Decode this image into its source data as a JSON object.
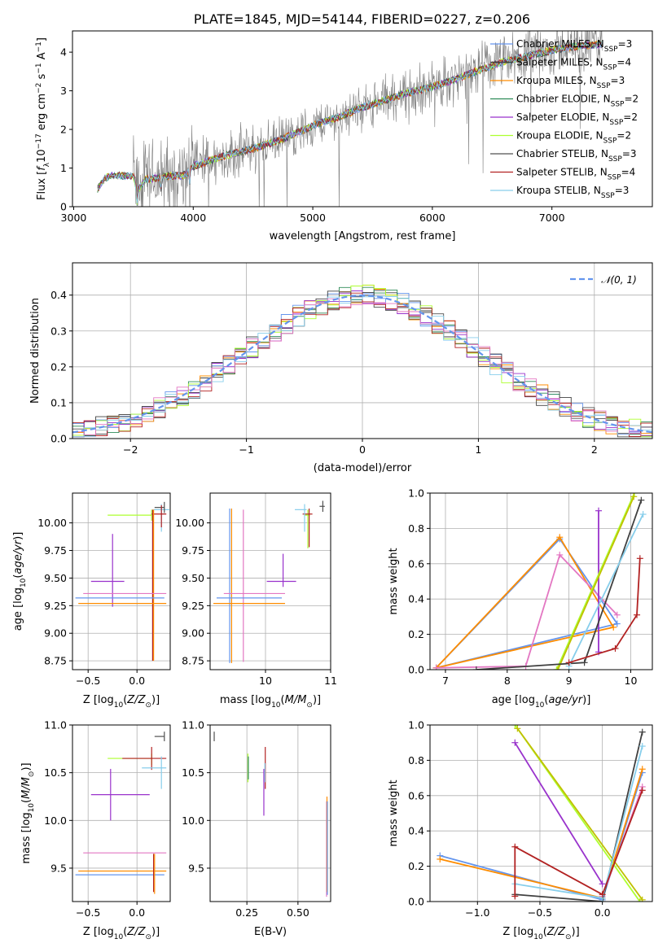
{
  "chart_data": [
    {
      "type": "line",
      "panel": "spectrum",
      "title": "PLATE=1845, MJD=54144, FIBERID=0227, z=0.206",
      "xlabel": "wavelength [Angstrom, rest frame]",
      "ylabel": "Flux [f_λ 10^-17 erg cm^-2 s^-1 A^-1]",
      "xlim": [
        2990,
        7840
      ],
      "ylim": [
        0,
        4.55
      ],
      "xticks": [
        "3000",
        "4000",
        "5000",
        "6000",
        "7000"
      ],
      "yticks": [
        "0",
        "1",
        "2",
        "3",
        "4"
      ],
      "data_color": "#808080",
      "legend_position": "upper right",
      "legend": [
        {
          "label": "Chabrier MILES, N",
          "sub": "SSP",
          "tail": "=3",
          "color": "#6495ed"
        },
        {
          "label": "Salpeter MILES, N",
          "sub": "SSP",
          "tail": "=4",
          "color": "#404040"
        },
        {
          "label": "Kroupa MILES, N",
          "sub": "SSP",
          "tail": "=3",
          "color": "#ff8c00"
        },
        {
          "label": "Chabrier ELODIE, N",
          "sub": "SSP",
          "tail": "=2",
          "color": "#2e8b57"
        },
        {
          "label": "Salpeter ELODIE, N",
          "sub": "SSP",
          "tail": "=2",
          "color": "#9932cc"
        },
        {
          "label": "Kroupa ELODIE, N",
          "sub": "SSP",
          "tail": "=2",
          "color": "#adff2f"
        },
        {
          "label": "Chabrier STELIB, N",
          "sub": "SSP",
          "tail": "=3",
          "color": "#505050"
        },
        {
          "label": "Salpeter STELIB, N",
          "sub": "SSP",
          "tail": "=4",
          "color": "#b22222"
        },
        {
          "label": "Kroupa STELIB, N",
          "sub": "SSP",
          "tail": "=3",
          "color": "#87ceeb"
        }
      ],
      "model_curve": {
        "x": [
          3200,
          3250,
          3300,
          3500,
          3530,
          3600,
          3700,
          3800,
          3900,
          3950,
          4000,
          4100,
          4300,
          4500,
          4700,
          4900,
          5000,
          5200,
          5400,
          5600,
          5800,
          6000,
          6200,
          6400,
          6600,
          6800,
          7000,
          7200,
          7400
        ],
        "y": [
          0.45,
          0.7,
          0.8,
          0.8,
          0.4,
          0.7,
          0.75,
          0.8,
          0.8,
          0.85,
          1.05,
          1.15,
          1.35,
          1.5,
          1.7,
          1.95,
          2.1,
          2.3,
          2.55,
          2.75,
          2.95,
          3.1,
          3.3,
          3.55,
          3.75,
          3.9,
          4.05,
          4.15,
          4.2
        ]
      }
    },
    {
      "type": "line",
      "panel": "residual-histogram",
      "xlabel": "(data-model)/error",
      "ylabel": "Normed distribution",
      "xlim": [
        -2.5,
        2.5
      ],
      "ylim": [
        0,
        0.49
      ],
      "xticks": [
        -2,
        -1,
        0,
        1,
        2
      ],
      "yticks": [
        "0.0",
        "0.1",
        "0.2",
        "0.3",
        "0.4"
      ],
      "grid": true,
      "legend": [
        {
          "label": "𝒩(0, 1)",
          "color": "#6495ed",
          "style": "dashed"
        }
      ],
      "legend_position": "upper right",
      "curve_colors": [
        "#6495ed",
        "#404040",
        "#ff8c00",
        "#2e8b57",
        "#9932cc",
        "#adff2f",
        "#505050",
        "#b22222",
        "#87ceeb",
        "#e377c2"
      ]
    },
    {
      "type": "scatter",
      "panel": "age-vs-Z",
      "xlabel": "Z [log10(Z/Z⊙)]",
      "ylabel": "age [log10(age/yr)]",
      "xlim": [
        -0.66,
        0.34
      ],
      "ylim": [
        8.67,
        10.27
      ],
      "xticks": [
        "-0.5",
        "0.0"
      ],
      "yticks": [
        "8.75",
        "9.00",
        "9.25",
        "9.50",
        "9.75",
        "10.00"
      ],
      "errorbars": [
        {
          "x": 0.15,
          "y": 10.07,
          "xerr": [
            0.45,
            0.0
          ],
          "yerr": [
            0.05,
            0.05
          ],
          "color": "#adff2f"
        },
        {
          "x": 0.25,
          "y": 10.12,
          "xerr": [
            0.08,
            0.08
          ],
          "yerr": [
            0.2,
            0.05
          ],
          "color": "#87ceeb"
        },
        {
          "x": 0.28,
          "y": 10.14,
          "xerr": [
            0.1,
            0.0
          ],
          "yerr": [
            0.05,
            0.05
          ],
          "color": "#505050"
        },
        {
          "x": 0.25,
          "y": 10.08,
          "xerr": [
            0.1,
            0.05
          ],
          "yerr": [
            0.12,
            0.08
          ],
          "color": "#b22222"
        },
        {
          "x": 0.16,
          "y": 9.3,
          "xerr": [
            0.0,
            0.0
          ],
          "yerr": [
            0.55,
            0.82
          ],
          "color": "#b22222"
        },
        {
          "x": 0.17,
          "y": 9.3,
          "xerr": [
            0.0,
            0.0
          ],
          "yerr": [
            0.55,
            0.82
          ],
          "color": "#ff8c00"
        },
        {
          "x": -0.25,
          "y": 9.47,
          "xerr": [
            0.22,
            0.12
          ],
          "yerr": [
            0.23,
            0.43
          ],
          "color": "#9932cc"
        },
        {
          "x": 0.0,
          "y": 9.36,
          "xerr": [
            0.55,
            0.3
          ],
          "yerr": [
            0.0,
            0.0
          ],
          "color": "#e377c2"
        },
        {
          "x": 0.0,
          "y": 9.32,
          "xerr": [
            0.63,
            0.28
          ],
          "yerr": [
            0.0,
            0.0
          ],
          "color": "#6495ed"
        },
        {
          "x": 0.0,
          "y": 9.27,
          "xerr": [
            0.6,
            0.3
          ],
          "yerr": [
            0.0,
            0.0
          ],
          "color": "#ff8c00"
        }
      ]
    },
    {
      "type": "scatter",
      "panel": "age-vs-mass",
      "xlabel": "mass [log10(M/M⊙)]",
      "xlim": [
        9.15,
        11.0
      ],
      "ylim": [
        8.67,
        10.27
      ],
      "xticks": [
        "10",
        "11"
      ],
      "yticks": [
        "8.75",
        "9.00",
        "9.25",
        "9.50",
        "9.75",
        "10.00"
      ],
      "errorbars": [
        {
          "x": 9.45,
          "y": 9.43,
          "xerr": [
            0.0,
            0.0
          ],
          "yerr": [
            0.7,
            0.7
          ],
          "color": "#6495ed"
        },
        {
          "x": 9.48,
          "y": 9.43,
          "xerr": [
            0.0,
            0.0
          ],
          "yerr": [
            0.7,
            0.7
          ],
          "color": "#ff8c00"
        },
        {
          "x": 9.66,
          "y": 9.43,
          "xerr": [
            0.0,
            0.0
          ],
          "yerr": [
            0.69,
            0.69
          ],
          "color": "#e377c2"
        },
        {
          "x": 9.66,
          "y": 9.36,
          "xerr": [
            0.3,
            0.64
          ],
          "yerr": [
            0.0,
            0.0
          ],
          "color": "#e377c2"
        },
        {
          "x": 9.55,
          "y": 9.32,
          "xerr": [
            0.3,
            0.7
          ],
          "yerr": [
            0.0,
            0.0
          ],
          "color": "#6495ed"
        },
        {
          "x": 9.5,
          "y": 9.27,
          "xerr": [
            0.3,
            0.8
          ],
          "yerr": [
            0.0,
            0.0
          ],
          "color": "#ff8c00"
        },
        {
          "x": 10.27,
          "y": 9.47,
          "xerr": [
            0.25,
            0.2
          ],
          "yerr": [
            0.05,
            0.25
          ],
          "color": "#9932cc"
        },
        {
          "x": 10.65,
          "y": 10.07,
          "xerr": [
            0.05,
            0.03
          ],
          "yerr": [
            0.3,
            0.05
          ],
          "color": "#adff2f"
        },
        {
          "x": 10.67,
          "y": 10.08,
          "xerr": [
            0.1,
            0.05
          ],
          "yerr": [
            0.3,
            0.05
          ],
          "color": "#b22222"
        },
        {
          "x": 10.6,
          "y": 10.12,
          "xerr": [
            0.15,
            0.03
          ],
          "yerr": [
            0.2,
            0.05
          ],
          "color": "#87ceeb"
        },
        {
          "x": 10.88,
          "y": 10.15,
          "xerr": [
            0.05,
            0.03
          ],
          "yerr": [
            0.05,
            0.05
          ],
          "color": "#505050"
        }
      ]
    },
    {
      "type": "line",
      "panel": "mass-weight-vs-age",
      "xlabel": "age [log10(age/yr)]",
      "ylabel": "mass weight",
      "xlim": [
        6.75,
        10.35
      ],
      "ylim": [
        0,
        1.0
      ],
      "xticks": [
        7,
        8,
        9,
        10
      ],
      "yticks": [
        "0.0",
        "0.2",
        "0.4",
        "0.6",
        "0.8",
        "1.0"
      ],
      "grid": true,
      "series": [
        {
          "color": "#6495ed",
          "x": [
            6.85,
            8.85,
            9.78,
            6.85
          ],
          "y": [
            0.01,
            0.74,
            0.26,
            0.01
          ]
        },
        {
          "color": "#ff8c00",
          "x": [
            6.85,
            8.85,
            9.72,
            6.85
          ],
          "y": [
            0.01,
            0.75,
            0.24,
            0.01
          ]
        },
        {
          "color": "#e377c2",
          "x": [
            6.85,
            8.3,
            8.85,
            9.78
          ],
          "y": [
            0.01,
            0.02,
            0.65,
            0.31
          ]
        },
        {
          "color": "#9932cc",
          "x": [
            9.48,
            9.48
          ],
          "y": [
            0.1,
            0.9
          ]
        },
        {
          "color": "#adff2f",
          "x": [
            8.8,
            10.06,
            8.8
          ],
          "y": [
            0.0,
            1.0,
            0.0
          ]
        },
        {
          "color": "#c0c000",
          "x": [
            8.82,
            10.05
          ],
          "y": [
            0.0,
            0.98
          ]
        },
        {
          "color": "#404040",
          "x": [
            7.5,
            9.25,
            10.17
          ],
          "y": [
            0.0,
            0.04,
            0.96
          ]
        },
        {
          "color": "#87ceeb",
          "x": [
            9.0,
            10.2
          ],
          "y": [
            0.02,
            0.88
          ]
        },
        {
          "color": "#b22222",
          "x": [
            9.0,
            9.75,
            10.1,
            10.15
          ],
          "y": [
            0.04,
            0.12,
            0.31,
            0.63
          ]
        }
      ]
    },
    {
      "type": "scatter",
      "panel": "mass-vs-Z",
      "xlabel": "Z [log10(Z/Z⊙)]",
      "ylabel": "mass [log10(M/M⊙)]",
      "xlim": [
        -0.66,
        0.34
      ],
      "ylim": [
        9.15,
        11.0
      ],
      "xticks": [
        "-0.5",
        "0.0"
      ],
      "yticks": [
        "9.5",
        "10.0",
        "10.5",
        "11.0"
      ],
      "errorbars": [
        {
          "x": 0.28,
          "y": 10.88,
          "xerr": [
            0.1,
            0.0
          ],
          "yerr": [
            0.05,
            0.05
          ],
          "color": "#505050"
        },
        {
          "x": 0.15,
          "y": 10.65,
          "xerr": [
            0.45,
            0.0
          ],
          "yerr": [
            0.07,
            0.05
          ],
          "color": "#adff2f"
        },
        {
          "x": 0.15,
          "y": 10.65,
          "xerr": [
            0.3,
            0.15
          ],
          "yerr": [
            0.12,
            0.12
          ],
          "color": "#b22222"
        },
        {
          "x": 0.25,
          "y": 10.55,
          "xerr": [
            0.2,
            0.05
          ],
          "yerr": [
            0.22,
            0.12
          ],
          "color": "#87ceeb"
        },
        {
          "x": -0.27,
          "y": 10.27,
          "xerr": [
            0.2,
            0.4
          ],
          "yerr": [
            0.27,
            0.27
          ],
          "color": "#9932cc"
        },
        {
          "x": 0.0,
          "y": 9.66,
          "xerr": [
            0.55,
            0.3
          ],
          "yerr": [
            0.0,
            0.0
          ],
          "color": "#e377c2"
        },
        {
          "x": 0.0,
          "y": 9.47,
          "xerr": [
            0.6,
            0.3
          ],
          "yerr": [
            0.0,
            0.0
          ],
          "color": "#ff8c00"
        },
        {
          "x": 0.0,
          "y": 9.43,
          "xerr": [
            0.63,
            0.28
          ],
          "yerr": [
            0.0,
            0.0
          ],
          "color": "#6495ed"
        },
        {
          "x": 0.17,
          "y": 9.5,
          "xerr": [
            0.0,
            0.0
          ],
          "yerr": [
            0.25,
            0.15
          ],
          "color": "#b22222"
        },
        {
          "x": 0.18,
          "y": 9.5,
          "xerr": [
            0.0,
            0.0
          ],
          "yerr": [
            0.27,
            0.15
          ],
          "color": "#ff8c00"
        }
      ]
    },
    {
      "type": "scatter",
      "panel": "mass-vs-EBV",
      "xlabel": "E(B-V)",
      "xlim": [
        0.07,
        0.66
      ],
      "ylim": [
        9.15,
        11.0
      ],
      "xticks": [
        "0.25",
        "0.50"
      ],
      "yticks": [
        "9.5",
        "10.0",
        "10.5",
        "11.0"
      ],
      "errorbars": [
        {
          "x": 0.09,
          "y": 10.88,
          "xerr": [
            0.0,
            0.0
          ],
          "yerr": [
            0.05,
            0.05
          ],
          "color": "#505050"
        },
        {
          "x": 0.255,
          "y": 10.55,
          "xerr": [
            0.0,
            0.0
          ],
          "yerr": [
            0.15,
            0.15
          ],
          "color": "#adff2f"
        },
        {
          "x": 0.257,
          "y": 10.55,
          "xerr": [
            0.0,
            0.0
          ],
          "yerr": [
            0.12,
            0.12
          ],
          "color": "#2e8b57"
        },
        {
          "x": 0.333,
          "y": 10.27,
          "xerr": [
            0.0,
            0.0
          ],
          "yerr": [
            0.22,
            0.27
          ],
          "color": "#9932cc"
        },
        {
          "x": 0.34,
          "y": 10.55,
          "xerr": [
            0.0,
            0.0
          ],
          "yerr": [
            0.22,
            0.22
          ],
          "color": "#b22222"
        },
        {
          "x": 0.338,
          "y": 10.5,
          "xerr": [
            0.0,
            0.0
          ],
          "yerr": [
            0.1,
            0.1
          ],
          "color": "#87ceeb"
        },
        {
          "x": 0.64,
          "y": 9.7,
          "xerr": [
            0.0,
            0.0
          ],
          "yerr": [
            0.5,
            0.5
          ],
          "color": "#e377c2"
        },
        {
          "x": 0.642,
          "y": 9.7,
          "xerr": [
            0.0,
            0.0
          ],
          "yerr": [
            0.45,
            0.55
          ],
          "color": "#ff8c00"
        },
        {
          "x": 0.644,
          "y": 9.7,
          "xerr": [
            0.0,
            0.0
          ],
          "yerr": [
            0.48,
            0.5
          ],
          "color": "#6495ed"
        }
      ]
    },
    {
      "type": "line",
      "panel": "mass-weight-vs-Z",
      "xlabel": "Z [log10(Z/Z⊙)]",
      "ylabel": "mass weight",
      "xlim": [
        -1.38,
        0.4
      ],
      "ylim": [
        0,
        1.0
      ],
      "xticks": [
        "−1.0",
        "−0.5",
        "0.0"
      ],
      "yticks": [
        "0.0",
        "0.2",
        "0.4",
        "0.6",
        "0.8",
        "1.0"
      ],
      "grid": true,
      "series": [
        {
          "color": "#6495ed",
          "x": [
            -1.3,
            0.0,
            0.32
          ],
          "y": [
            0.26,
            0.01,
            0.73
          ]
        },
        {
          "color": "#ff8c00",
          "x": [
            -1.3,
            0.0,
            0.32
          ],
          "y": [
            0.24,
            0.02,
            0.75
          ]
        },
        {
          "color": "#e377c2",
          "x": [
            0.0,
            0.32
          ],
          "y": [
            0.03,
            0.65
          ]
        },
        {
          "color": "#9932cc",
          "x": [
            -0.7,
            0.0
          ],
          "y": [
            0.9,
            0.1
          ]
        },
        {
          "color": "#adff2f",
          "x": [
            -0.7,
            0.3
          ],
          "y": [
            1.0,
            0.0
          ]
        },
        {
          "color": "#c0c000",
          "x": [
            -0.68,
            0.32
          ],
          "y": [
            0.98,
            0.01
          ]
        },
        {
          "color": "#404040",
          "x": [
            -0.7,
            0.0,
            0.32
          ],
          "y": [
            0.04,
            0.0,
            0.96
          ]
        },
        {
          "color": "#87ceeb",
          "x": [
            -0.7,
            0.0,
            0.32
          ],
          "y": [
            0.1,
            0.02,
            0.88
          ]
        },
        {
          "color": "#b22222",
          "x": [
            -0.7,
            -0.7,
            0.0,
            0.32
          ],
          "y": [
            0.03,
            0.31,
            0.04,
            0.63
          ]
        }
      ]
    }
  ]
}
